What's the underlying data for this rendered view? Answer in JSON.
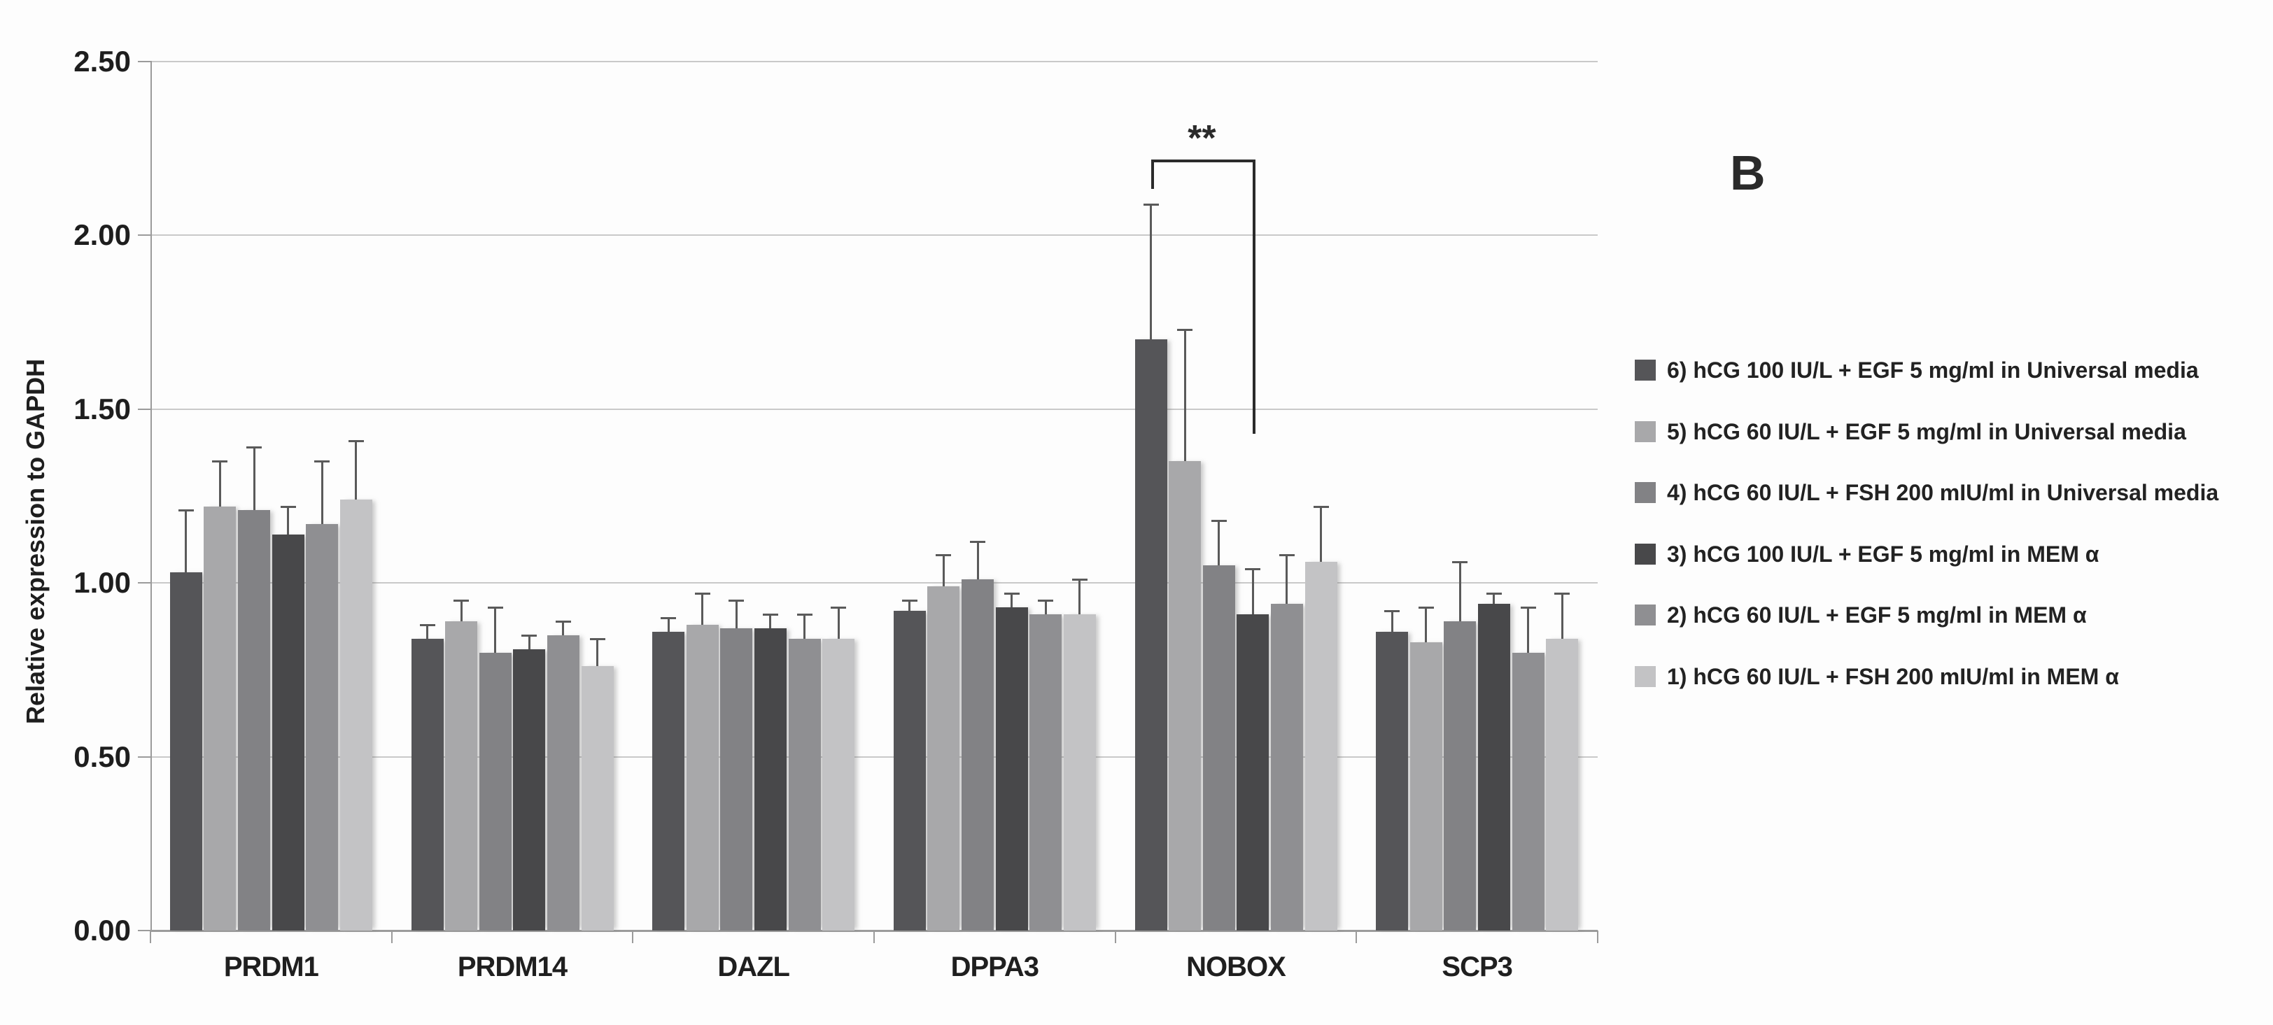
{
  "panel": {
    "label": "B"
  },
  "chart_data": {
    "type": "bar",
    "title": "",
    "xlabel": "",
    "ylabel": "Relative expression to GAPDH",
    "ylim": [
      0,
      2.5
    ],
    "ytick_step": 0.5,
    "yticks": [
      "0.00",
      "0.50",
      "1.00",
      "1.50",
      "2.00",
      "2.50"
    ],
    "grid": true,
    "legend_position": "right",
    "categories": [
      "PRDM1",
      "PRDM14",
      "DAZL",
      "DPPA3",
      "NOBOX",
      "SCP3"
    ],
    "series": [
      {
        "name": "6) hCG 100 IU/L + EGF 5 mg/ml in Universal media",
        "color": "#555558",
        "values": [
          1.03,
          0.84,
          0.86,
          0.92,
          1.7,
          0.86
        ],
        "errors": [
          0.18,
          0.04,
          0.04,
          0.03,
          0.39,
          0.06
        ]
      },
      {
        "name": "5) hCG 60 IU/L  + EGF 5 mg/ml in Universal media",
        "color": "#a8a8aa",
        "values": [
          1.22,
          0.89,
          0.88,
          0.99,
          1.35,
          0.83
        ],
        "errors": [
          0.13,
          0.06,
          0.09,
          0.09,
          0.38,
          0.1
        ]
      },
      {
        "name": "4) hCG 60 IU/L + FSH 200 mIU/ml in Universal media",
        "color": "#828285",
        "values": [
          1.21,
          0.8,
          0.87,
          1.01,
          1.05,
          0.89
        ],
        "errors": [
          0.18,
          0.13,
          0.08,
          0.11,
          0.13,
          0.17
        ]
      },
      {
        "name": "3) hCG 100 IU/L + EGF 5 mg/ml in MEM α",
        "color": "#48484a",
        "values": [
          1.14,
          0.81,
          0.87,
          0.93,
          0.91,
          0.94
        ],
        "errors": [
          0.08,
          0.04,
          0.04,
          0.04,
          0.13,
          0.03
        ]
      },
      {
        "name": "2) hCG 60 IU/L + EGF 5 mg/ml in MEM α",
        "color": "#8f8f92",
        "values": [
          1.17,
          0.85,
          0.84,
          0.91,
          0.94,
          0.8
        ],
        "errors": [
          0.18,
          0.04,
          0.07,
          0.04,
          0.14,
          0.13
        ]
      },
      {
        "name": "1) hCG 60 IU/L + FSH 200 mIU/ml in MEM α",
        "color": "#c3c3c5",
        "values": [
          1.24,
          0.76,
          0.84,
          0.91,
          1.06,
          0.84
        ],
        "errors": [
          0.17,
          0.08,
          0.09,
          0.1,
          0.16,
          0.13
        ]
      }
    ],
    "annotation": {
      "text": "**",
      "category_index": 4,
      "from_series_index": 0,
      "to_series_index": 3
    }
  }
}
